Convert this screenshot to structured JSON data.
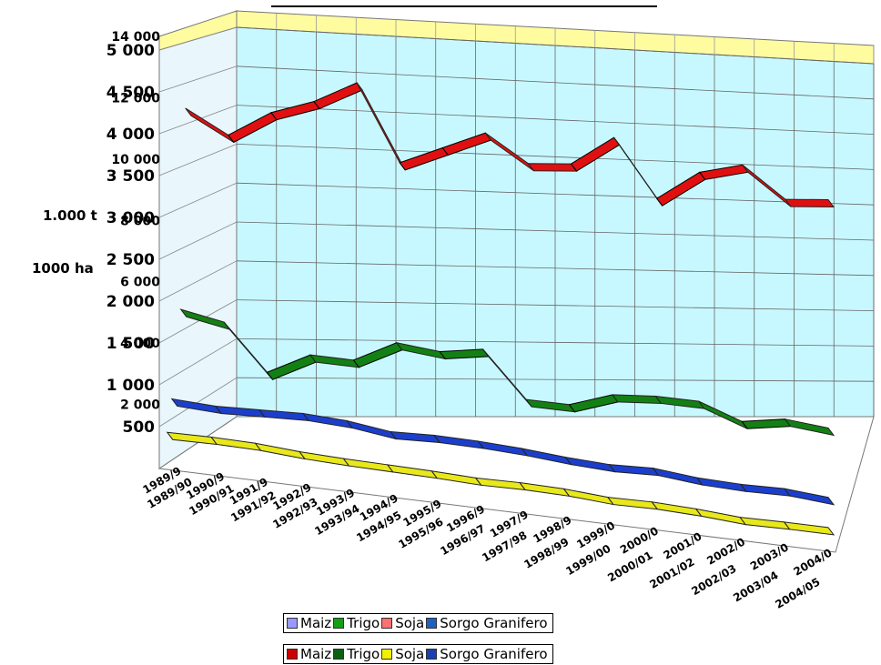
{
  "chart_data": {
    "type": "line",
    "style": "3d-ribbon",
    "categories": [
      "1989/90",
      "1990/91",
      "1991/92",
      "1992/93",
      "1993/94",
      "1994/95",
      "1995/96",
      "1996/97",
      "1997/98",
      "1998/99",
      "1999/00",
      "2000/01",
      "2001/02",
      "2002/03",
      "2003/04",
      "2004/05"
    ],
    "categories_short": [
      "1989/9",
      "1990/9",
      "1991/9",
      "1992/9",
      "1993/9",
      "1994/9",
      "1995/9",
      "1996/9",
      "1997/9",
      "1998/9",
      "1999/0",
      "2000/0",
      "2001/0",
      "2002/0",
      "2003/0",
      "2004/0"
    ],
    "y_axis_ha": {
      "label": "1000 ha",
      "ticks": [
        "500",
        "1 000",
        "1 500",
        "2 000",
        "2 500",
        "3 000",
        "3 500",
        "4 000",
        "4 500",
        "5 000"
      ],
      "range": [
        0,
        5000
      ]
    },
    "y_axis_t": {
      "label": "1.000 t",
      "ticks": [
        "2 000",
        "4 000",
        "6 000",
        "8 000",
        "10 000",
        "12 000",
        "14 000"
      ],
      "range": [
        0,
        14000
      ]
    },
    "series": [
      {
        "name": "Maiz",
        "color": "#e01010",
        "values": [
          4100,
          3750,
          4050,
          4200,
          4450,
          3400,
          3600,
          3800,
          3400,
          3400,
          3750,
          2950,
          3300,
          3400,
          2950,
          2950
        ]
      },
      {
        "name": "Trigo",
        "color": "#138013",
        "values": [
          1600,
          1450,
          800,
          1050,
          1000,
          1250,
          1150,
          1200,
          550,
          500,
          650,
          650,
          600,
          350,
          400,
          300
        ]
      },
      {
        "name": "Soja",
        "color": "#e8e81a",
        "values": [
          390,
          390,
          370,
          320,
          290,
          270,
          250,
          220,
          220,
          200,
          150,
          150,
          120,
          70,
          70,
          60
        ]
      },
      {
        "name": "Sorgo Granifero",
        "color": "#1b3fcc",
        "values": [
          700,
          650,
          650,
          650,
          600,
          500,
          500,
          470,
          420,
          350,
          300,
          300,
          220,
          180,
          170,
          100
        ]
      }
    ],
    "legends": [
      {
        "items": [
          {
            "name": "Maiz",
            "color": "#9999ff"
          },
          {
            "name": "Trigo",
            "color": "#13a013"
          },
          {
            "name": "Soja",
            "color": "#ff7070"
          },
          {
            "name": "Sorgo Granifero",
            "color": "#2060c0"
          }
        ]
      },
      {
        "items": [
          {
            "name": "Maiz",
            "color": "#cc0000"
          },
          {
            "name": "Trigo",
            "color": "#0a6010"
          },
          {
            "name": "Soja",
            "color": "#f0f000"
          },
          {
            "name": "Sorgo Granifero",
            "color": "#1a3fb0"
          }
        ]
      }
    ],
    "grid": true,
    "legend_position": "bottom"
  }
}
